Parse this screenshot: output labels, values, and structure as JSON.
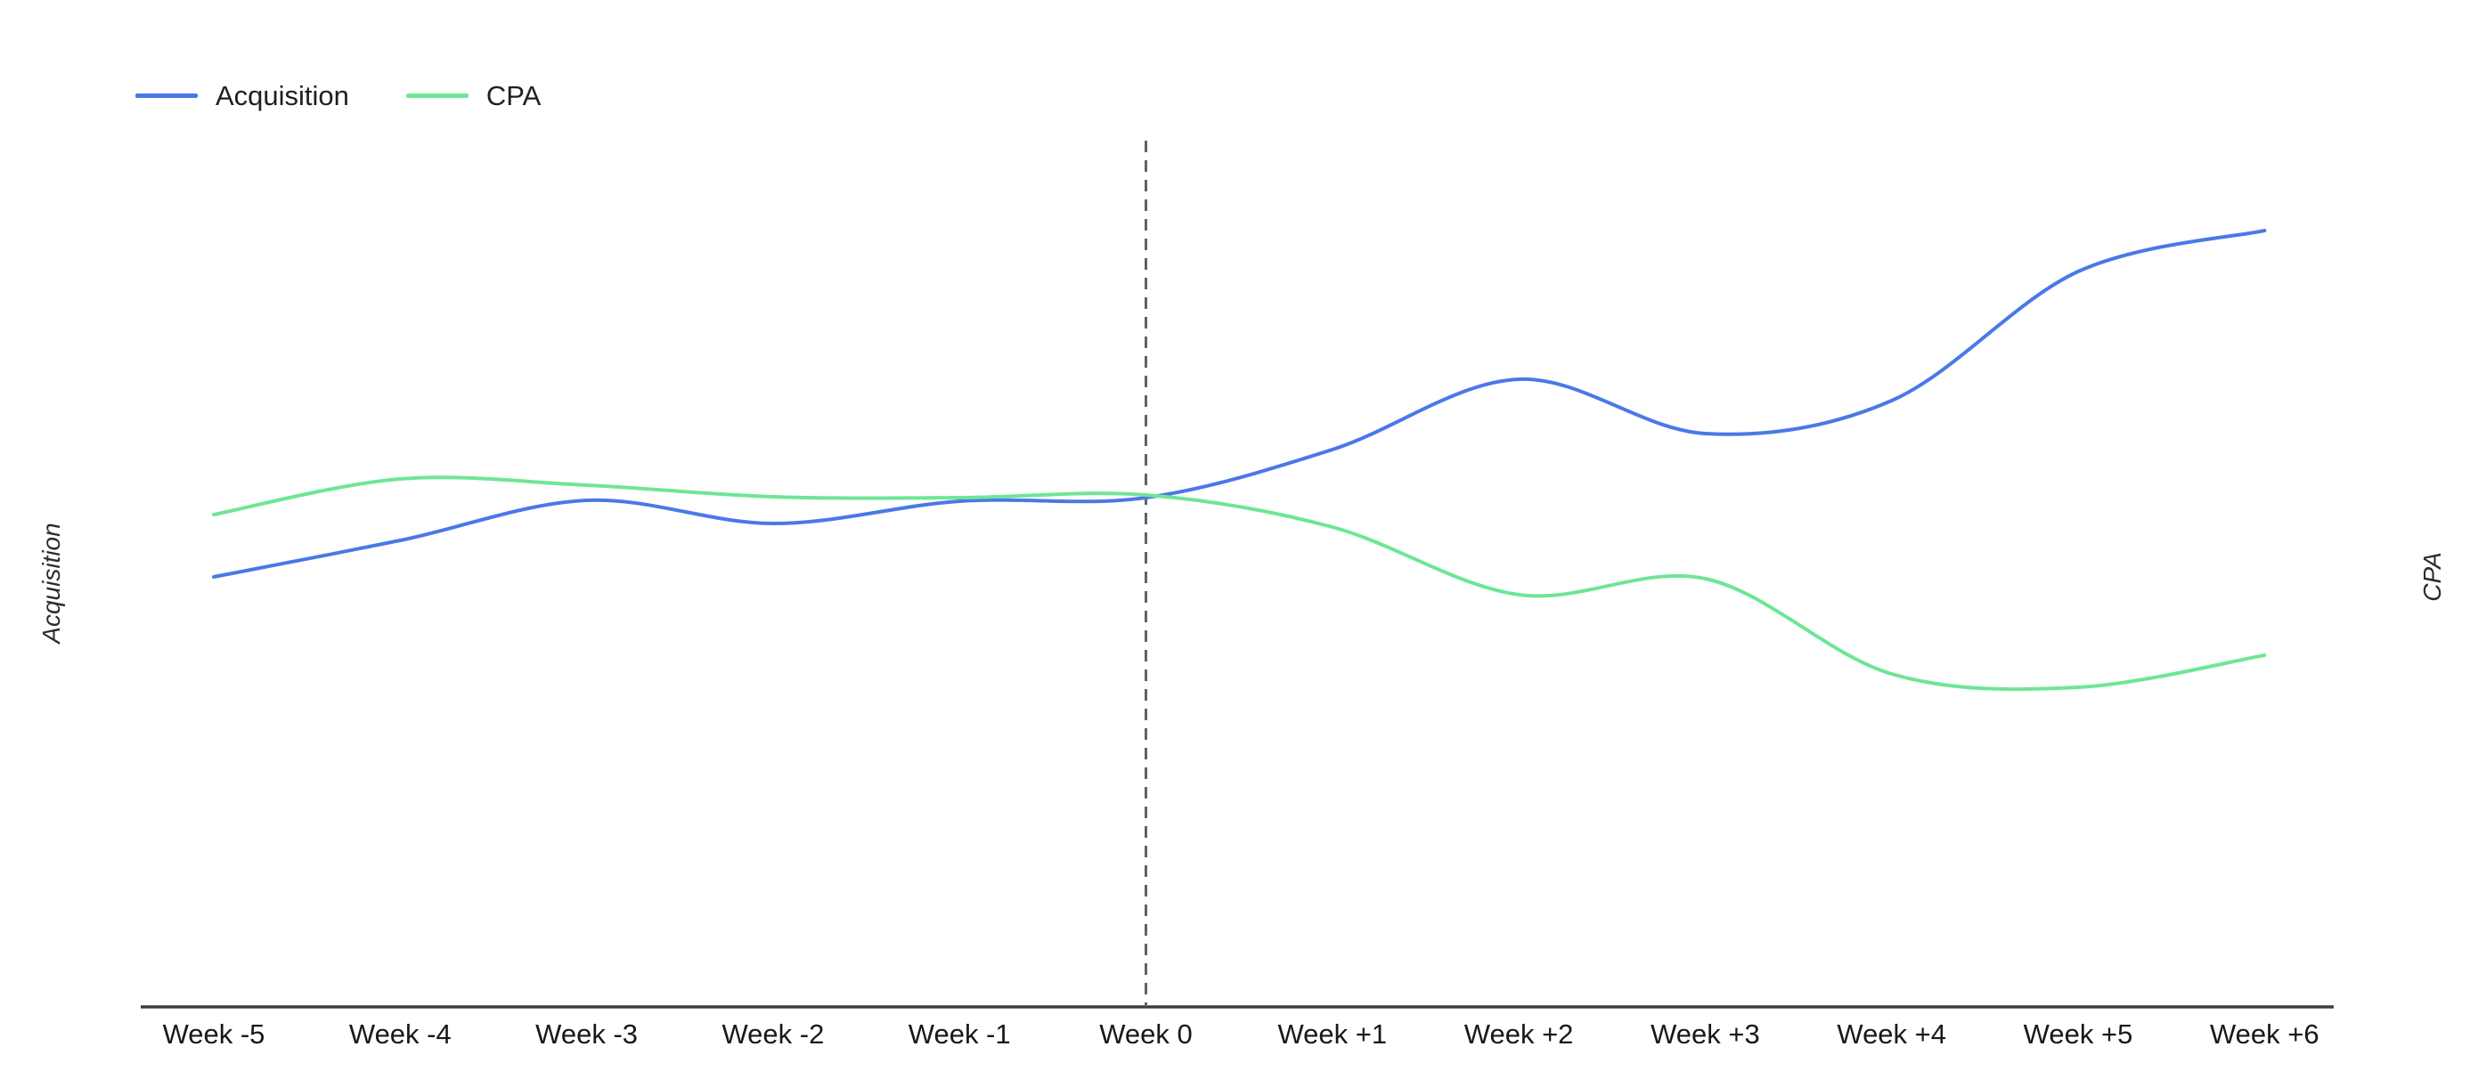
{
  "page": {
    "background": "#ffffff"
  },
  "legend": {
    "position": "top-left",
    "items": [
      {
        "label": "Acquisition",
        "color": "#4a78e8"
      },
      {
        "label": "CPA",
        "color": "#6ee694"
      }
    ]
  },
  "axes": {
    "left_label": "Acquisition",
    "right_label": "CPA",
    "x_axis_color": "#3c4043",
    "reference_line_color": "#5f6368",
    "tick_label_color": "#17181a"
  },
  "chart_data": {
    "type": "line",
    "curve": "smooth",
    "grid": false,
    "legend_position": "top-left",
    "categories": [
      "Week -5",
      "Week -4",
      "Week -3",
      "Week -2",
      "Week -1",
      "Week 0",
      "Week +1",
      "Week +2",
      "Week +3",
      "Week +4",
      "Week +5",
      "Week +6"
    ],
    "series": [
      {
        "name": "Acquisition",
        "color": "#4a78e8",
        "axis": "left",
        "values": [
          48.3,
          52.4,
          56.9,
          54.3,
          56.8,
          57.2,
          62.6,
          70.5,
          64.4,
          68.1,
          82.6,
          87.2
        ]
      },
      {
        "name": "CPA",
        "color": "#6ee694",
        "axis": "right",
        "values": [
          55.3,
          59.3,
          58.6,
          57.3,
          57.2,
          57.5,
          53.9,
          46.3,
          48.1,
          37.4,
          35.9,
          39.5
        ]
      }
    ],
    "reference_line": {
      "category": "Week 0",
      "style": "dashed"
    },
    "value_axis": {
      "visible": false,
      "range": [
        0,
        100
      ],
      "note": "no numeric ticks shown; series values are relative index estimates read from pixel positions"
    }
  }
}
